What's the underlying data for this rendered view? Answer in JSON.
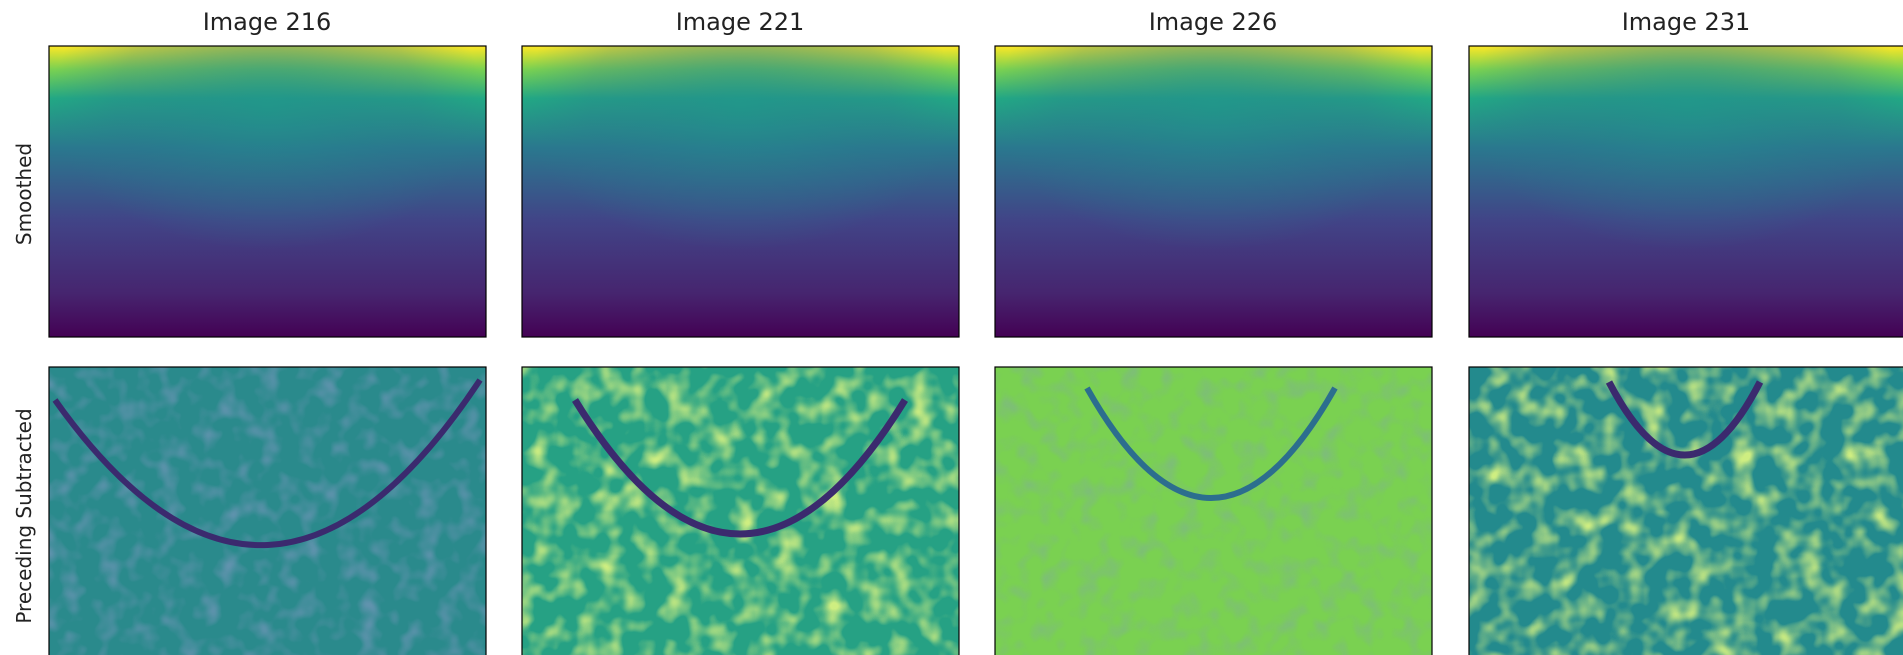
{
  "columns": [
    {
      "title": "Image 216"
    },
    {
      "title": "Image 221"
    },
    {
      "title": "Image 226"
    },
    {
      "title": "Image 231"
    }
  ],
  "rows": [
    {
      "label": "Smoothed"
    },
    {
      "label": "Preceding Subtracted"
    }
  ]
}
